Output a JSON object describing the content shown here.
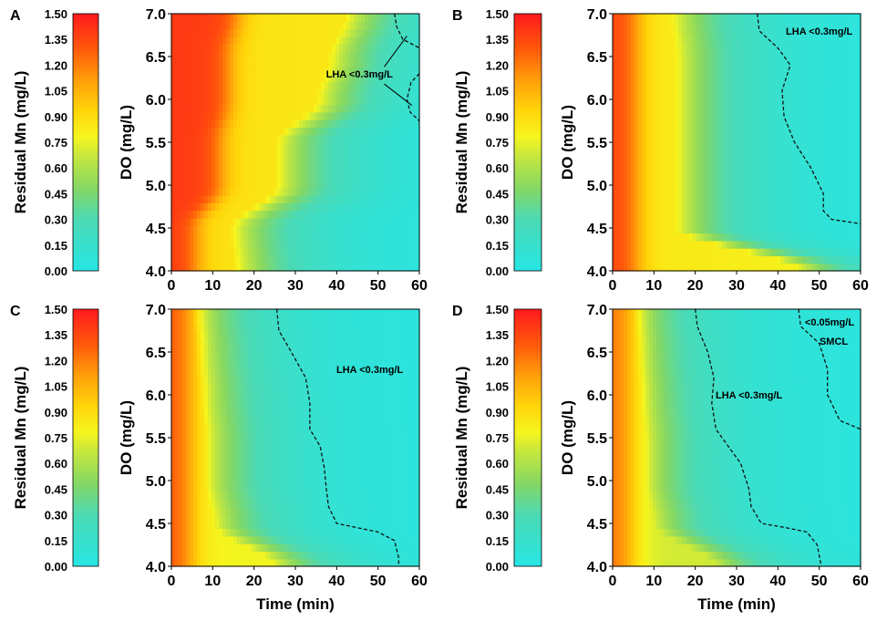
{
  "chart_data": [
    {
      "type": "heatmap",
      "panel": "A",
      "xlabel": "",
      "ylabel": "DO (mg/L)",
      "xlim": [
        0,
        60
      ],
      "ylim": [
        4.0,
        7.0
      ],
      "x_ticks": [
        "0",
        "10",
        "20",
        "30",
        "40",
        "50",
        "60"
      ],
      "y_ticks": [
        "4.0",
        "4.5",
        "5.0",
        "5.5",
        "6.0",
        "6.5",
        "7.0"
      ],
      "colorbar": {
        "label": "Residual Mn (mg/L)",
        "range": [
          0.0,
          1.5
        ],
        "ticks": [
          "0.00",
          "0.15",
          "0.30",
          "0.45",
          "0.60",
          "0.75",
          "0.90",
          "1.05",
          "1.20",
          "1.35",
          "1.50"
        ]
      },
      "fronts": [
        [
          15,
          14,
          25,
          25,
          35,
          38,
          42
        ],
        [
          6,
          6,
          12,
          12,
          14,
          14,
          16
        ]
      ],
      "offset": 0.0,
      "contour": [
        [
          54,
          7.0
        ],
        [
          54.5,
          6.85
        ],
        [
          56,
          6.7
        ],
        [
          60,
          6.6
        ]
      ],
      "contour2": [
        [
          60,
          6.3
        ],
        [
          58,
          6.2
        ],
        [
          57,
          6.0
        ],
        [
          57.8,
          5.85
        ],
        [
          60,
          5.75
        ]
      ],
      "annotations": [
        {
          "text": "LHA <0.3mg/L",
          "x": 45.5,
          "y": 6.3
        }
      ]
    },
    {
      "type": "heatmap",
      "panel": "B",
      "xlabel": "",
      "ylabel": "DO (mg/L)",
      "xlim": [
        0,
        60
      ],
      "ylim": [
        4.0,
        7.0
      ],
      "x_ticks": [
        "0",
        "10",
        "20",
        "30",
        "40",
        "50",
        "60"
      ],
      "y_ticks": [
        "4.0",
        "4.5",
        "5.0",
        "5.5",
        "6.0",
        "6.5",
        "7.0"
      ],
      "colorbar": {
        "label": "Residual Mn (mg/L)",
        "range": [
          0.0,
          1.5
        ],
        "ticks": [
          "0.00",
          "0.15",
          "0.30",
          "0.45",
          "0.60",
          "0.75",
          "0.90",
          "1.05",
          "1.20",
          "1.35",
          "1.50"
        ]
      },
      "fronts": [
        [
          45,
          15,
          15,
          15,
          15,
          15,
          14
        ],
        [
          6,
          6,
          6,
          6,
          6,
          6,
          6
        ]
      ],
      "offset": 0.05,
      "contour": [
        [
          35,
          7.0
        ],
        [
          35.5,
          6.8
        ],
        [
          40,
          6.6
        ],
        [
          43,
          6.4
        ],
        [
          41,
          6.1
        ],
        [
          41.5,
          5.8
        ],
        [
          44,
          5.5
        ],
        [
          48,
          5.2
        ],
        [
          51,
          4.9
        ],
        [
          51,
          4.7
        ],
        [
          53,
          4.6
        ],
        [
          60,
          4.55
        ]
      ],
      "annotations": [
        {
          "text": "LHA <0.3mg/L",
          "x": 50,
          "y": 6.8
        }
      ]
    },
    {
      "type": "heatmap",
      "panel": "C",
      "xlabel": "Time (min)",
      "ylabel": "DO (mg/L)",
      "xlim": [
        0,
        60
      ],
      "ylim": [
        4.0,
        7.0
      ],
      "x_ticks": [
        "0",
        "10",
        "20",
        "30",
        "40",
        "50",
        "60"
      ],
      "y_ticks": [
        "4.0",
        "4.5",
        "5.0",
        "5.5",
        "6.0",
        "6.5",
        "7.0"
      ],
      "colorbar": {
        "label": "Residual Mn (mg/L)",
        "range": [
          0.0,
          1.5
        ],
        "ticks": [
          "0.00",
          "0.15",
          "0.30",
          "0.45",
          "0.60",
          "0.75",
          "0.90",
          "1.05",
          "1.20",
          "1.35",
          "1.50"
        ]
      },
      "fronts": [
        [
          25,
          10,
          8,
          8,
          7,
          6,
          5
        ],
        [
          5,
          5,
          5,
          5,
          5,
          5,
          5
        ]
      ],
      "offset": 0.12,
      "contour": [
        [
          25.5,
          7.0
        ],
        [
          26,
          6.75
        ],
        [
          29,
          6.5
        ],
        [
          32.5,
          6.2
        ],
        [
          33.5,
          5.9
        ],
        [
          33.5,
          5.6
        ],
        [
          36,
          5.4
        ],
        [
          37,
          5.15
        ],
        [
          37.5,
          4.9
        ],
        [
          38,
          4.7
        ],
        [
          40,
          4.5
        ],
        [
          45,
          4.45
        ],
        [
          50,
          4.4
        ],
        [
          54,
          4.3
        ],
        [
          55,
          4.1
        ],
        [
          55,
          4.0
        ]
      ],
      "annotations": [
        {
          "text": "LHA <0.3mg/L",
          "x": 48,
          "y": 6.3
        }
      ]
    },
    {
      "type": "heatmap",
      "panel": "D",
      "xlabel": "Time (min)",
      "ylabel": "DO (mg/L)",
      "xlim": [
        0,
        60
      ],
      "ylim": [
        4.0,
        7.0
      ],
      "x_ticks": [
        "0",
        "10",
        "20",
        "30",
        "40",
        "50",
        "60"
      ],
      "y_ticks": [
        "4.0",
        "4.5",
        "5.0",
        "5.5",
        "6.0",
        "6.5",
        "7.0"
      ],
      "colorbar": {
        "label": "Residual Mn (mg/L)",
        "range": [
          0.0,
          1.5
        ],
        "ticks": [
          "0.00",
          "0.15",
          "0.30",
          "0.45",
          "0.60",
          "0.75",
          "0.90",
          "1.05",
          "1.20",
          "1.35",
          "1.50"
        ]
      },
      "fronts": [
        [
          25,
          10,
          8,
          8,
          7,
          6,
          5
        ],
        [
          5,
          5,
          5,
          5,
          5,
          5,
          5
        ]
      ],
      "offset": 0.22,
      "contour": [
        [
          20,
          7.0
        ],
        [
          20.5,
          6.8
        ],
        [
          23,
          6.5
        ],
        [
          24.5,
          6.2
        ],
        [
          24,
          5.9
        ],
        [
          25,
          5.6
        ],
        [
          28,
          5.4
        ],
        [
          31,
          5.2
        ],
        [
          33,
          4.9
        ],
        [
          33.5,
          4.7
        ],
        [
          36,
          4.5
        ],
        [
          42,
          4.45
        ],
        [
          47,
          4.4
        ],
        [
          49.5,
          4.25
        ],
        [
          50.5,
          4.0
        ]
      ],
      "contour2": [
        [
          45,
          7.0
        ],
        [
          45.5,
          6.8
        ],
        [
          50,
          6.6
        ],
        [
          52,
          6.3
        ],
        [
          52,
          6.0
        ],
        [
          55,
          5.7
        ],
        [
          60,
          5.6
        ]
      ],
      "annotations": [
        {
          "text": "LHA <0.3mg/L",
          "x": 33,
          "y": 6.0
        },
        {
          "text": "<0.05mg/L",
          "x": 52.5,
          "y": 6.85
        },
        {
          "text": "SMCL",
          "x": 53.5,
          "y": 6.63
        }
      ]
    }
  ]
}
